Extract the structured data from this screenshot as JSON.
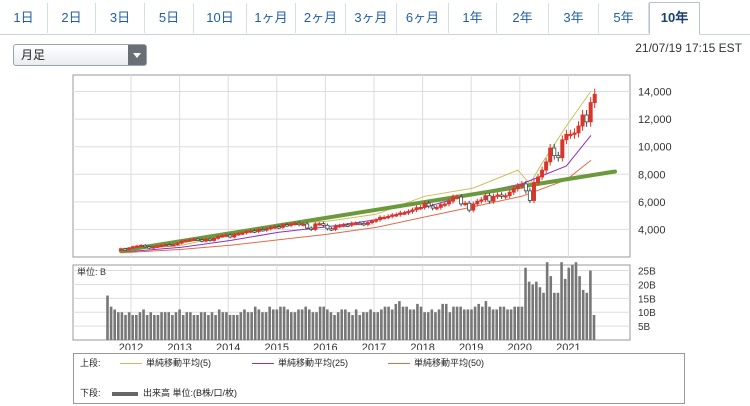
{
  "tabs": [
    "1日",
    "2日",
    "3日",
    "5日",
    "10日",
    "1ヶ月",
    "2ヶ月",
    "3ヶ月",
    "6ヶ月",
    "1年",
    "2年",
    "3年",
    "5年",
    "10年"
  ],
  "active_tab": "10年",
  "period_select": {
    "value": "月足"
  },
  "timestamp": "21/07/19 17:15 EST",
  "volume_panel": {
    "unit_label": "単位: B"
  },
  "legend": {
    "upper_label": "上段:",
    "lower_label": "下段:",
    "ma5": "単純移動平均(5)",
    "ma25": "単純移動平均(25)",
    "ma50": "単純移動平均(50)",
    "volume": "出来高 単位:(B株/口/枚)"
  },
  "colors": {
    "candle_up": "#d9362b",
    "candle_down": "#444444",
    "ma5": "#c8c25a",
    "ma25": "#8f2fc9",
    "ma50": "#e36a4a",
    "trend": "#6a9a3c",
    "volume_bar": "#777777"
  },
  "chart_data": [
    {
      "type": "candlestick",
      "title": "",
      "x": [
        "2012",
        "2013",
        "2014",
        "2015",
        "2016",
        "2017",
        "2018",
        "2019",
        "2020",
        "2021"
      ],
      "y_ticks": [
        4000,
        6000,
        8000,
        10000,
        12000,
        14000
      ],
      "ylim": [
        2000,
        15200
      ],
      "grid": true,
      "series": [
        {
          "name": "単純移動平均(5)",
          "type": "line",
          "points": [
            [
              "2011-10",
              2500
            ],
            [
              "2013-01",
              2850
            ],
            [
              "2014-01",
              3600
            ],
            [
              "2015-01",
              4400
            ],
            [
              "2016-01",
              4600
            ],
            [
              "2017-01",
              5100
            ],
            [
              "2018-01",
              6400
            ],
            [
              "2019-01",
              7000
            ],
            [
              "2019-12",
              8300
            ],
            [
              "2020-03",
              7300
            ],
            [
              "2020-06",
              8800
            ],
            [
              "2020-12",
              11500
            ],
            [
              "2021-06",
              14000
            ]
          ]
        },
        {
          "name": "単純移動平均(25)",
          "type": "line",
          "points": [
            [
              "2011-10",
              2350
            ],
            [
              "2013-01",
              2700
            ],
            [
              "2014-01",
              3200
            ],
            [
              "2015-01",
              3800
            ],
            [
              "2016-01",
              4200
            ],
            [
              "2017-01",
              4700
            ],
            [
              "2018-01",
              5600
            ],
            [
              "2019-01",
              6600
            ],
            [
              "2020-01",
              7300
            ],
            [
              "2020-12",
              8600
            ],
            [
              "2021-06",
              10800
            ]
          ]
        },
        {
          "name": "単純移動平均(50)",
          "type": "line",
          "points": [
            [
              "2011-10",
              2300
            ],
            [
              "2013-01",
              2550
            ],
            [
              "2014-01",
              2850
            ],
            [
              "2015-01",
              3250
            ],
            [
              "2016-01",
              3650
            ],
            [
              "2017-01",
              4150
            ],
            [
              "2018-01",
              4900
            ],
            [
              "2019-01",
              5650
            ],
            [
              "2020-01",
              6400
            ],
            [
              "2020-12",
              7600
            ],
            [
              "2021-06",
              9000
            ]
          ]
        },
        {
          "name": "trend",
          "type": "line",
          "points": [
            [
              "2011-10",
              2450
            ],
            [
              "2021-12",
              8200
            ]
          ]
        }
      ],
      "candles": [
        [
          "2011-10",
          2500,
          2600
        ],
        [
          "2011-11",
          2600,
          2550
        ],
        [
          "2011-12",
          2550,
          2650
        ],
        [
          "2012-01",
          2650,
          2750
        ],
        [
          "2012-02",
          2750,
          2800
        ],
        [
          "2012-03",
          2800,
          2850
        ],
        [
          "2012-04",
          2850,
          2750
        ],
        [
          "2012-05",
          2750,
          2650
        ],
        [
          "2012-06",
          2650,
          2750
        ],
        [
          "2012-07",
          2750,
          2800
        ],
        [
          "2012-08",
          2800,
          2850
        ],
        [
          "2012-09",
          2850,
          2900
        ],
        [
          "2012-10",
          2900,
          2850
        ],
        [
          "2012-11",
          2850,
          2900
        ],
        [
          "2012-12",
          2900,
          3000
        ],
        [
          "2013-01",
          3000,
          3150
        ],
        [
          "2013-02",
          3150,
          3200
        ],
        [
          "2013-03",
          3200,
          3250
        ],
        [
          "2013-04",
          3250,
          3300
        ],
        [
          "2013-05",
          3300,
          3250
        ],
        [
          "2013-06",
          3250,
          3150
        ],
        [
          "2013-07",
          3150,
          3300
        ],
        [
          "2013-08",
          3300,
          3200
        ],
        [
          "2013-09",
          3200,
          3350
        ],
        [
          "2013-10",
          3350,
          3500
        ],
        [
          "2013-11",
          3500,
          3550
        ],
        [
          "2013-12",
          3550,
          3600
        ],
        [
          "2014-01",
          3600,
          3450
        ],
        [
          "2014-02",
          3450,
          3650
        ],
        [
          "2014-03",
          3650,
          3700
        ],
        [
          "2014-04",
          3700,
          3750
        ],
        [
          "2014-05",
          3750,
          3850
        ],
        [
          "2014-06",
          3850,
          3900
        ],
        [
          "2014-07",
          3900,
          3850
        ],
        [
          "2014-08",
          3850,
          4000
        ],
        [
          "2014-09",
          4000,
          3950
        ],
        [
          "2014-10",
          3950,
          4050
        ],
        [
          "2014-11",
          4050,
          4150
        ],
        [
          "2014-12",
          4150,
          4200
        ],
        [
          "2015-01",
          4200,
          4150
        ],
        [
          "2015-02",
          4150,
          4350
        ],
        [
          "2015-03",
          4350,
          4300
        ],
        [
          "2015-04",
          4300,
          4400
        ],
        [
          "2015-05",
          4400,
          4450
        ],
        [
          "2015-06",
          4450,
          4350
        ],
        [
          "2015-07",
          4350,
          4400
        ],
        [
          "2015-08",
          4400,
          4100
        ],
        [
          "2015-09",
          4100,
          4000
        ],
        [
          "2015-10",
          4000,
          4400
        ],
        [
          "2015-11",
          4400,
          4420
        ],
        [
          "2015-12",
          4420,
          4300
        ],
        [
          "2016-01",
          4300,
          4050
        ],
        [
          "2016-02",
          4050,
          4000
        ],
        [
          "2016-03",
          4000,
          4250
        ],
        [
          "2016-04",
          4250,
          4280
        ],
        [
          "2016-05",
          4280,
          4330
        ],
        [
          "2016-06",
          4330,
          4300
        ],
        [
          "2016-07",
          4300,
          4450
        ],
        [
          "2016-08",
          4450,
          4450
        ],
        [
          "2016-09",
          4450,
          4440
        ],
        [
          "2016-10",
          4440,
          4360
        ],
        [
          "2016-11",
          4360,
          4500
        ],
        [
          "2016-12",
          4500,
          4600
        ],
        [
          "2017-01",
          4600,
          4700
        ],
        [
          "2017-02",
          4700,
          4880
        ],
        [
          "2017-03",
          4880,
          4880
        ],
        [
          "2017-04",
          4880,
          4950
        ],
        [
          "2017-05",
          4950,
          5050
        ],
        [
          "2017-06",
          5050,
          5080
        ],
        [
          "2017-07",
          5080,
          5200
        ],
        [
          "2017-08",
          5200,
          5200
        ],
        [
          "2017-09",
          5200,
          5300
        ],
        [
          "2017-10",
          5300,
          5420
        ],
        [
          "2017-11",
          5420,
          5580
        ],
        [
          "2017-12",
          5580,
          5600
        ],
        [
          "2018-01",
          5600,
          5900
        ],
        [
          "2018-02",
          5900,
          5700
        ],
        [
          "2018-03",
          5700,
          5550
        ],
        [
          "2018-04",
          5550,
          5600
        ],
        [
          "2018-05",
          5600,
          5800
        ],
        [
          "2018-06",
          5800,
          5850
        ],
        [
          "2018-07",
          5850,
          6050
        ],
        [
          "2018-08",
          6050,
          6350
        ],
        [
          "2018-09",
          6350,
          6350
        ],
        [
          "2018-10",
          6350,
          5850
        ],
        [
          "2018-11",
          5850,
          5900
        ],
        [
          "2018-12",
          5900,
          5400
        ],
        [
          "2019-01",
          5400,
          5850
        ],
        [
          "2019-02",
          5850,
          6050
        ],
        [
          "2019-03",
          6050,
          6150
        ],
        [
          "2019-04",
          6150,
          6450
        ],
        [
          "2019-05",
          6450,
          6050
        ],
        [
          "2019-06",
          6050,
          6400
        ],
        [
          "2019-07",
          6400,
          6500
        ],
        [
          "2019-08",
          6500,
          6400
        ],
        [
          "2019-09",
          6400,
          6450
        ],
        [
          "2019-10",
          6450,
          6700
        ],
        [
          "2019-11",
          6700,
          6950
        ],
        [
          "2019-12",
          6950,
          7150
        ],
        [
          "2020-01",
          7150,
          7300
        ],
        [
          "2020-02",
          7300,
          6800
        ],
        [
          "2020-03",
          6800,
          6100
        ],
        [
          "2020-04",
          6100,
          7400
        ],
        [
          "2020-05",
          7400,
          7800
        ],
        [
          "2020-06",
          7800,
          8300
        ],
        [
          "2020-07",
          8300,
          8900
        ],
        [
          "2020-08",
          8900,
          9900
        ],
        [
          "2020-09",
          9900,
          9350
        ],
        [
          "2020-10",
          9350,
          9200
        ],
        [
          "2020-11",
          9200,
          10500
        ],
        [
          "2020-12",
          10500,
          10900
        ],
        [
          "2021-01",
          10900,
          10900
        ],
        [
          "2021-02",
          10900,
          11000
        ],
        [
          "2021-03",
          11000,
          11500
        ],
        [
          "2021-04",
          11500,
          12300
        ],
        [
          "2021-05",
          12300,
          11800
        ],
        [
          "2021-06",
          11800,
          13200
        ],
        [
          "2021-07",
          13200,
          13800
        ]
      ]
    },
    {
      "type": "bar",
      "title": "",
      "ylabel": "単位: B",
      "y_ticks": [
        "5B",
        "10B",
        "15B",
        "20B",
        "25B"
      ],
      "ylim": [
        0,
        27
      ],
      "series": [
        {
          "name": "出来高",
          "values": [
            16,
            12,
            11,
            10,
            10,
            9,
            10,
            9,
            9,
            10,
            11,
            9,
            10,
            9,
            9,
            10,
            10,
            10,
            9,
            10,
            11,
            9,
            10,
            10,
            9,
            9,
            10,
            10,
            9,
            10,
            9,
            11,
            10,
            10,
            9,
            9,
            9,
            10,
            11,
            10,
            10,
            12,
            11,
            10,
            10,
            12,
            11,
            11,
            12,
            12,
            11,
            10,
            10,
            11,
            11,
            12,
            11,
            10,
            10,
            12,
            12,
            11,
            10,
            9,
            10,
            11,
            11,
            10,
            9,
            11,
            9,
            10,
            10,
            11,
            10,
            10,
            11,
            12,
            12,
            11,
            13,
            14,
            12,
            12,
            11,
            11,
            13,
            12,
            10,
            10,
            11,
            10,
            11,
            13,
            13,
            10,
            12,
            12,
            12,
            11,
            11,
            11,
            12,
            13,
            12,
            14,
            12,
            11,
            11,
            12,
            12,
            11,
            11,
            12,
            12,
            12,
            26,
            21,
            20,
            21,
            19,
            17,
            28,
            23,
            17,
            17,
            28,
            22,
            26,
            27,
            28,
            23,
            18,
            17,
            25,
            9
          ]
        }
      ]
    }
  ]
}
